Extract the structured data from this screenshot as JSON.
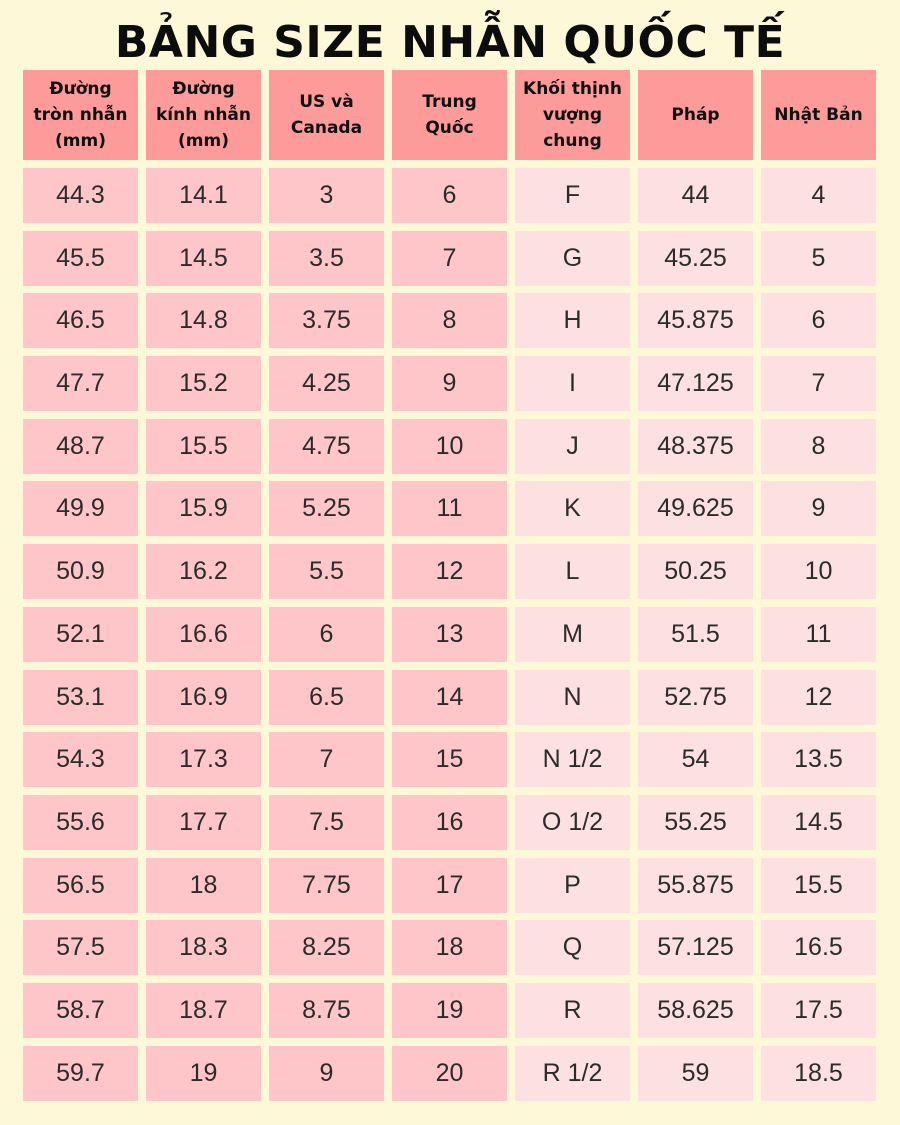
{
  "title": "BẢNG SIZE NHẪN QUỐC TẾ",
  "colors": {
    "background": "#fdf8d8",
    "header": "#fd9a9a",
    "cell_dark": "#fec6c8",
    "cell_light": "#fde0e1"
  },
  "headers": [
    "Đường\ntròn nhẫn\n(mm)",
    "Đường\nkính nhẫn\n(mm)",
    "US và\nCanada",
    "Trung\nQuốc",
    "Khối thịnh\nvượng\nchung",
    "Pháp",
    "Nhật Bản"
  ],
  "rows": [
    [
      "44.3",
      "14.1",
      "3",
      "6",
      "F",
      "44",
      "4"
    ],
    [
      "45.5",
      "14.5",
      "3.5",
      "7",
      "G",
      "45.25",
      "5"
    ],
    [
      "46.5",
      "14.8",
      "3.75",
      "8",
      "H",
      "45.875",
      "6"
    ],
    [
      "47.7",
      "15.2",
      "4.25",
      "9",
      "I",
      "47.125",
      "7"
    ],
    [
      "48.7",
      "15.5",
      "4.75",
      "10",
      "J",
      "48.375",
      "8"
    ],
    [
      "49.9",
      "15.9",
      "5.25",
      "11",
      "K",
      "49.625",
      "9"
    ],
    [
      "50.9",
      "16.2",
      "5.5",
      "12",
      "L",
      "50.25",
      "10"
    ],
    [
      "52.1",
      "16.6",
      "6",
      "13",
      "M",
      "51.5",
      "11"
    ],
    [
      "53.1",
      "16.9",
      "6.5",
      "14",
      "N",
      "52.75",
      "12"
    ],
    [
      "54.3",
      "17.3",
      "7",
      "15",
      "N 1/2",
      "54",
      "13.5"
    ],
    [
      "55.6",
      "17.7",
      "7.5",
      "16",
      "O 1/2",
      "55.25",
      "14.5"
    ],
    [
      "56.5",
      "18",
      "7.75",
      "17",
      "P",
      "55.875",
      "15.5"
    ],
    [
      "57.5",
      "18.3",
      "8.25",
      "18",
      "Q",
      "57.125",
      "16.5"
    ],
    [
      "58.7",
      "18.7",
      "8.75",
      "19",
      "R",
      "58.625",
      "17.5"
    ],
    [
      "59.7",
      "19",
      "9",
      "20",
      "R 1/2",
      "59",
      "18.5"
    ]
  ]
}
